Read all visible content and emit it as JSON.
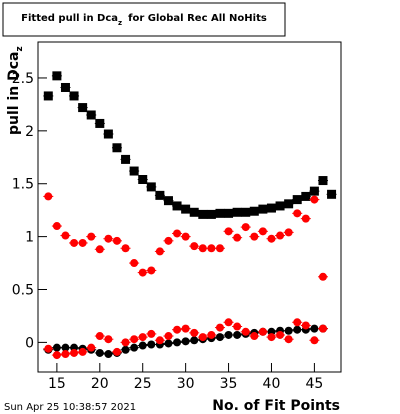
{
  "chart_data": {
    "type": "scatter",
    "title": [
      "Fitted pull in Dca",
      "z",
      "for Global Rec All NoHits"
    ],
    "ylabel": [
      "pull in Dca",
      "z"
    ],
    "xlabel": "No. of Fit Points",
    "timestamp": "Sun Apr 25 10:38:57 2021",
    "x": [
      14,
      15,
      16,
      17,
      18,
      19,
      20,
      21,
      22,
      23,
      24,
      25,
      26,
      27,
      28,
      29,
      30,
      31,
      32,
      33,
      34,
      35,
      36,
      37,
      38,
      39,
      40,
      41,
      42,
      43,
      44,
      45,
      46,
      47
    ],
    "xlim": [
      12.8,
      48.1
    ],
    "xticks": [
      15,
      20,
      25,
      30,
      35,
      40,
      45
    ],
    "ylim": [
      -0.28,
      2.84
    ],
    "yticks": [
      0,
      0.5,
      1,
      1.5,
      2,
      2.5
    ],
    "series": [
      {
        "color": "#000000",
        "marker": "square",
        "values": [
          2.33,
          2.52,
          2.41,
          2.33,
          2.22,
          2.15,
          2.07,
          1.97,
          1.84,
          1.73,
          1.62,
          1.54,
          1.47,
          1.39,
          1.34,
          1.29,
          1.26,
          1.23,
          1.21,
          1.21,
          1.22,
          1.22,
          1.23,
          1.23,
          1.24,
          1.26,
          1.27,
          1.29,
          1.31,
          1.35,
          1.38,
          1.43,
          1.53,
          1.4
        ]
      },
      {
        "color": "#ff0000",
        "marker": "circle",
        "values": [
          1.38,
          1.1,
          1.01,
          0.94,
          0.94,
          1.0,
          0.88,
          0.98,
          0.96,
          0.89,
          0.75,
          0.66,
          0.68,
          0.86,
          0.96,
          1.03,
          1.0,
          0.91,
          0.89,
          0.89,
          0.89,
          1.05,
          0.99,
          1.09,
          1.0,
          1.05,
          0.98,
          1.01,
          1.04,
          1.22,
          1.17,
          1.35,
          0.62,
          null
        ]
      },
      {
        "color": "#000000",
        "marker": "circle",
        "values": [
          -0.07,
          -0.05,
          -0.05,
          -0.05,
          -0.06,
          -0.07,
          -0.1,
          -0.11,
          -0.1,
          -0.07,
          -0.05,
          -0.03,
          -0.02,
          -0.02,
          -0.01,
          0.0,
          0.01,
          0.02,
          0.03,
          0.04,
          0.05,
          0.07,
          0.07,
          0.08,
          0.09,
          0.1,
          0.1,
          0.11,
          0.11,
          0.12,
          0.12,
          0.13,
          0.13,
          null
        ]
      },
      {
        "color": "#ff0000",
        "marker": "circle",
        "values": [
          -0.06,
          -0.12,
          -0.11,
          -0.1,
          -0.09,
          -0.05,
          0.06,
          0.03,
          -0.09,
          0.0,
          0.03,
          0.05,
          0.08,
          0.02,
          0.06,
          0.12,
          0.13,
          0.09,
          0.05,
          0.07,
          0.14,
          0.19,
          0.15,
          0.1,
          0.06,
          0.1,
          0.05,
          0.07,
          0.03,
          0.19,
          0.16,
          0.02,
          0.13,
          null
        ]
      }
    ]
  }
}
